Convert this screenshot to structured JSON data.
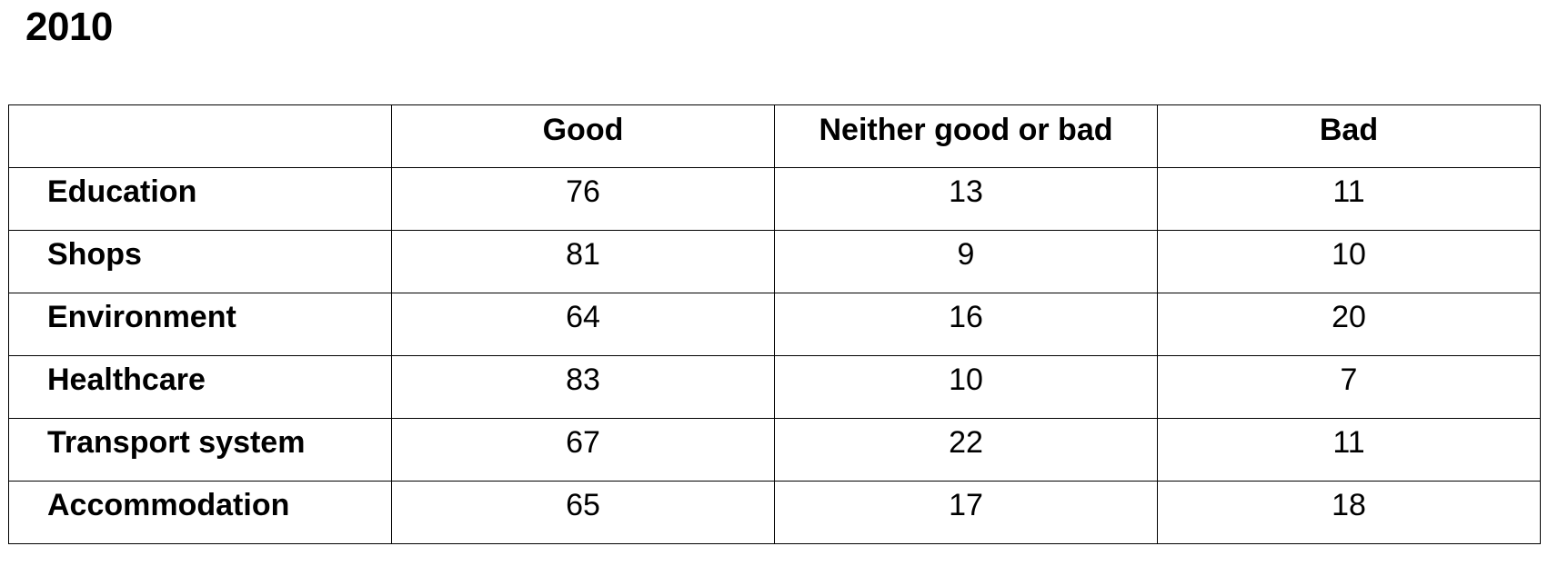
{
  "title": "2010",
  "table": {
    "columns": [
      "",
      "Good",
      "Neither good or bad",
      "Bad"
    ],
    "rows": [
      {
        "label": "Education",
        "values": [
          "76",
          "13",
          "11"
        ]
      },
      {
        "label": "Shops",
        "values": [
          "81",
          "9",
          "10"
        ]
      },
      {
        "label": "Environment",
        "values": [
          "64",
          "16",
          "20"
        ]
      },
      {
        "label": "Healthcare",
        "values": [
          "83",
          "10",
          "7"
        ]
      },
      {
        "label": "Transport system",
        "values": [
          "67",
          "22",
          "11"
        ]
      },
      {
        "label": "Accommodation",
        "values": [
          "65",
          "17",
          "18"
        ]
      }
    ]
  }
}
